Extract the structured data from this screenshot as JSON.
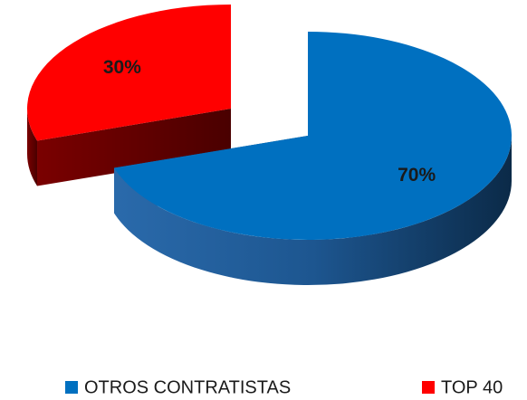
{
  "chart_data": {
    "type": "pie3d",
    "categories": [
      "OTROS CONTRATISTAS",
      "TOP 40"
    ],
    "values": [
      70,
      30
    ],
    "value_labels": [
      "70%",
      "30%"
    ],
    "colors": [
      "#0070c0",
      "#ff0000"
    ],
    "explode": [
      false,
      true
    ],
    "legend": "bottom"
  }
}
